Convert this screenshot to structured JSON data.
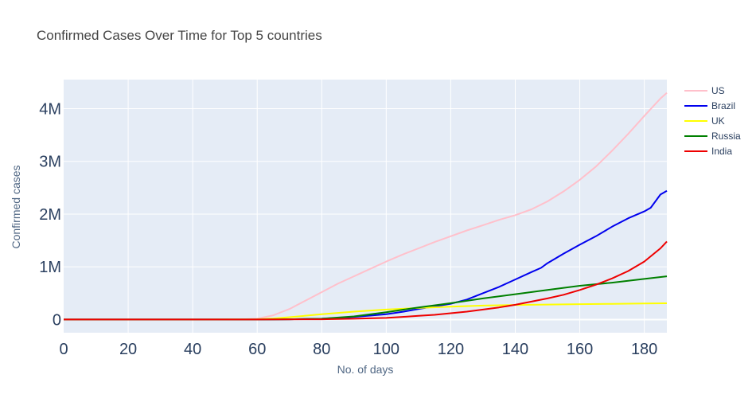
{
  "chart_data": {
    "type": "line",
    "title": "Confirmed Cases Over Time for Top 5 countries",
    "xlabel": "No. of days",
    "ylabel": "Confirmed cases",
    "xlim": [
      0,
      187
    ],
    "ylim": [
      -250000,
      4550000
    ],
    "x_ticks": [
      0,
      20,
      40,
      60,
      80,
      100,
      120,
      140,
      160,
      180
    ],
    "x_tick_labels": [
      "0",
      "20",
      "40",
      "60",
      "80",
      "100",
      "120",
      "140",
      "160",
      "180"
    ],
    "y_ticks": [
      0,
      1000000,
      2000000,
      3000000,
      4000000
    ],
    "y_tick_labels": [
      "0",
      "1M",
      "2M",
      "3M",
      "4M"
    ],
    "grid": true,
    "legend_position": "top-right",
    "series": [
      {
        "name": "US",
        "color": "#ffc0cb",
        "x": [
          0,
          20,
          40,
          55,
          60,
          65,
          70,
          75,
          80,
          85,
          90,
          95,
          100,
          105,
          110,
          115,
          120,
          125,
          130,
          135,
          140,
          145,
          150,
          155,
          160,
          165,
          170,
          175,
          180,
          185,
          187
        ],
        "y": [
          0,
          0,
          0,
          2000,
          15000,
          80000,
          200000,
          360000,
          520000,
          680000,
          820000,
          960000,
          1100000,
          1230000,
          1350000,
          1470000,
          1580000,
          1690000,
          1790000,
          1890000,
          1980000,
          2090000,
          2240000,
          2430000,
          2650000,
          2900000,
          3200000,
          3520000,
          3860000,
          4190000,
          4300000
        ]
      },
      {
        "name": "Brazil",
        "color": "#0000ee",
        "x": [
          0,
          40,
          60,
          70,
          80,
          85,
          90,
          95,
          100,
          105,
          110,
          115,
          120,
          125,
          130,
          135,
          140,
          145,
          148,
          150,
          155,
          160,
          165,
          170,
          175,
          180,
          182,
          185,
          187
        ],
        "y": [
          0,
          0,
          1000,
          5000,
          15000,
          30000,
          50000,
          75000,
          100000,
          145000,
          200000,
          250000,
          300000,
          380000,
          500000,
          620000,
          760000,
          900000,
          980000,
          1070000,
          1250000,
          1420000,
          1580000,
          1760000,
          1920000,
          2050000,
          2120000,
          2370000,
          2440000
        ]
      },
      {
        "name": "UK",
        "color": "#ffff00",
        "x": [
          0,
          40,
          60,
          65,
          70,
          80,
          90,
          100,
          110,
          120,
          130,
          140,
          150,
          160,
          170,
          180,
          187
        ],
        "y": [
          0,
          0,
          5000,
          20000,
          45000,
          100000,
          150000,
          190000,
          220000,
          245000,
          265000,
          277000,
          285000,
          292000,
          298000,
          304000,
          308000
        ]
      },
      {
        "name": "Russia",
        "color": "#008000",
        "x": [
          0,
          40,
          60,
          70,
          80,
          90,
          100,
          110,
          120,
          130,
          140,
          150,
          160,
          170,
          180,
          187
        ],
        "y": [
          0,
          0,
          1000,
          5000,
          15000,
          60000,
          140000,
          230000,
          310000,
          400000,
          480000,
          560000,
          640000,
          700000,
          770000,
          820000
        ]
      },
      {
        "name": "India",
        "color": "#ee0000",
        "x": [
          0,
          40,
          60,
          80,
          90,
          100,
          105,
          110,
          115,
          120,
          125,
          130,
          135,
          140,
          145,
          150,
          155,
          160,
          165,
          170,
          175,
          180,
          185,
          187
        ],
        "y": [
          0,
          0,
          1000,
          5000,
          15000,
          30000,
          50000,
          70000,
          90000,
          120000,
          150000,
          190000,
          230000,
          280000,
          340000,
          400000,
          470000,
          560000,
          660000,
          780000,
          920000,
          1100000,
          1350000,
          1480000
        ]
      }
    ]
  }
}
